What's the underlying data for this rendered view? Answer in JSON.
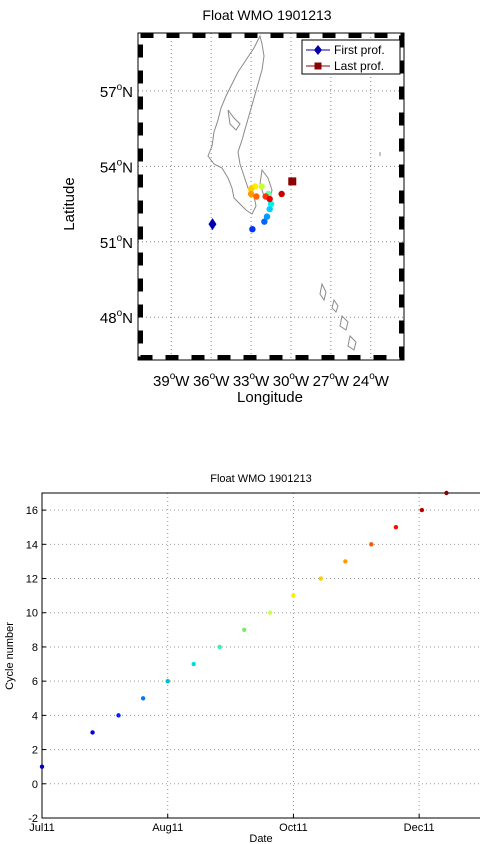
{
  "chart_data": [
    {
      "type": "scatter",
      "title": "Float WMO 1901213",
      "xlabel": "Longitude",
      "ylabel": "Latitude",
      "xlim": [
        -41.5,
        -21.5
      ],
      "ylim": [
        46.3,
        59.3
      ],
      "grid": true,
      "x_ticks": [
        {
          "value": -39,
          "deg": "39",
          "hemi": "W"
        },
        {
          "value": -36,
          "deg": "36",
          "hemi": "W"
        },
        {
          "value": -33,
          "deg": "33",
          "hemi": "W"
        },
        {
          "value": -30,
          "deg": "30",
          "hemi": "W"
        },
        {
          "value": -27,
          "deg": "27",
          "hemi": "W"
        },
        {
          "value": -24,
          "deg": "24",
          "hemi": "W"
        }
      ],
      "y_ticks": [
        {
          "value": 48,
          "deg": "48",
          "hemi": "N"
        },
        {
          "value": 51,
          "deg": "51",
          "hemi": "N"
        },
        {
          "value": 54,
          "deg": "54",
          "hemi": "N"
        },
        {
          "value": 57,
          "deg": "57",
          "hemi": "N"
        }
      ],
      "degree_symbol": "o",
      "legend": {
        "position": "top-right",
        "entries": [
          {
            "label": "First prof.",
            "marker": "diamond",
            "color": "#0000aa"
          },
          {
            "label": "Last prof.",
            "marker": "square",
            "color": "#8b0000"
          }
        ]
      },
      "first_profile": {
        "lon": -35.9,
        "lat": 51.7
      },
      "last_profile": {
        "lon": -29.9,
        "lat": 53.4
      },
      "series": [
        {
          "values": [
            {
              "lon": -32.9,
              "lat": 51.5,
              "color": "#0033ff"
            },
            {
              "lon": -32.0,
              "lat": 51.8,
              "color": "#0066ff"
            },
            {
              "lon": -31.8,
              "lat": 52.0,
              "color": "#0099ff"
            },
            {
              "lon": -31.6,
              "lat": 52.3,
              "color": "#00ccff"
            },
            {
              "lon": -31.5,
              "lat": 52.5,
              "color": "#00eeee"
            },
            {
              "lon": -31.6,
              "lat": 52.7,
              "color": "#66ff99"
            },
            {
              "lon": -31.7,
              "lat": 52.9,
              "color": "#66ffaa"
            },
            {
              "lon": -32.2,
              "lat": 53.2,
              "color": "#ccff33"
            },
            {
              "lon": -32.7,
              "lat": 53.2,
              "color": "#ffee00"
            },
            {
              "lon": -33.0,
              "lat": 53.1,
              "color": "#ffcc00"
            },
            {
              "lon": -33.0,
              "lat": 52.9,
              "color": "#ff9900"
            },
            {
              "lon": -32.6,
              "lat": 52.8,
              "color": "#ff6600"
            },
            {
              "lon": -31.9,
              "lat": 52.8,
              "color": "#ff3300"
            },
            {
              "lon": -31.6,
              "lat": 52.7,
              "color": "#ee0000"
            },
            {
              "lon": -30.7,
              "lat": 52.9,
              "color": "#cc0000"
            }
          ]
        }
      ]
    },
    {
      "type": "scatter",
      "title": "Float WMO 1901213",
      "xlabel": "Date",
      "ylabel": "Cycle number",
      "xlim": [
        0,
        161
      ],
      "ylim": [
        -2,
        17
      ],
      "grid": true,
      "x_ticks": [
        {
          "value": 0,
          "label": "Jul11"
        },
        {
          "value": 46,
          "label": "Aug11"
        },
        {
          "value": 92,
          "label": "Oct11"
        },
        {
          "value": 138,
          "label": "Dec11"
        }
      ],
      "y_ticks": [
        -2,
        0,
        2,
        4,
        6,
        8,
        10,
        12,
        14,
        16
      ],
      "series": [
        {
          "values": [
            {
              "x": 0,
              "y": 1,
              "color": "#0000bb"
            },
            {
              "x": 18.5,
              "y": 3,
              "color": "#0000dd"
            },
            {
              "x": 28,
              "y": 4,
              "color": "#0022ff"
            },
            {
              "x": 37,
              "y": 5,
              "color": "#0077ff"
            },
            {
              "x": 46,
              "y": 6,
              "color": "#00bbcc"
            },
            {
              "x": 55.5,
              "y": 7,
              "color": "#00dddd"
            },
            {
              "x": 65,
              "y": 8,
              "color": "#33eebb"
            },
            {
              "x": 74,
              "y": 9,
              "color": "#77ee66"
            },
            {
              "x": 83.5,
              "y": 10,
              "color": "#ccff44"
            },
            {
              "x": 92,
              "y": 11,
              "color": "#ffee00"
            },
            {
              "x": 102,
              "y": 12,
              "color": "#ffcc00"
            },
            {
              "x": 111,
              "y": 13,
              "color": "#ff9900"
            },
            {
              "x": 120.5,
              "y": 14,
              "color": "#ff5500"
            },
            {
              "x": 129.5,
              "y": 15,
              "color": "#ee1100"
            },
            {
              "x": 139,
              "y": 16,
              "color": "#bb0000"
            },
            {
              "x": 148,
              "y": 17,
              "color": "#880000"
            }
          ]
        }
      ]
    }
  ]
}
